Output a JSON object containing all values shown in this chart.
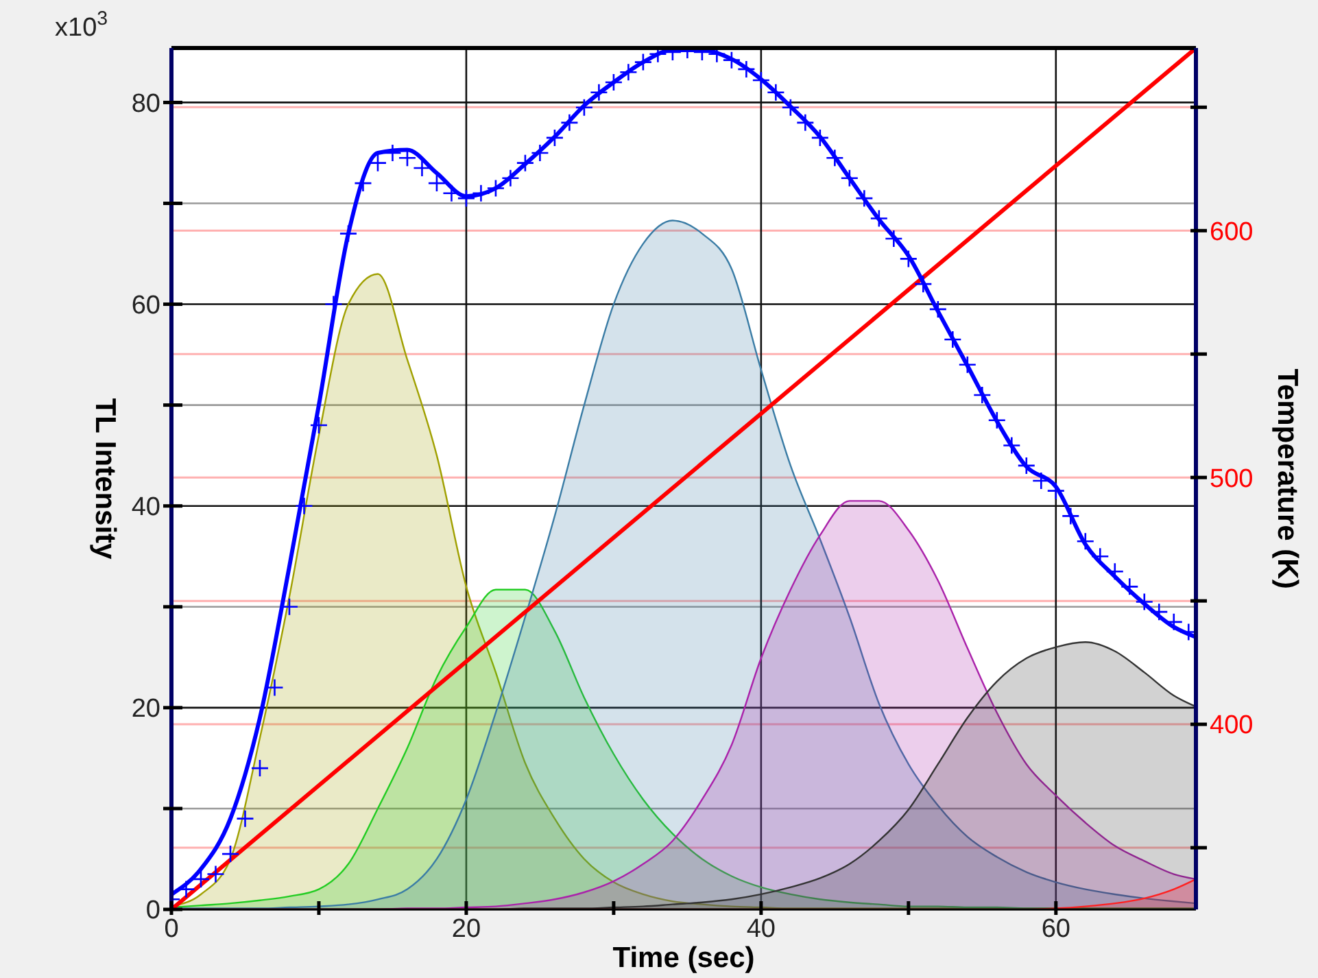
{
  "chart_data": {
    "type": "area",
    "xlabel": "Time (sec)",
    "ylabel": "TL Intensity",
    "y2label": "Temperature (K)",
    "annotations": [
      "x10$^{3}$"
    ],
    "x": [
      0,
      2,
      4,
      6,
      8,
      10,
      12,
      14,
      16,
      18,
      20,
      22,
      24,
      26,
      28,
      30,
      32,
      34,
      36,
      38,
      40,
      42,
      44,
      46,
      48,
      50,
      52,
      54,
      56,
      58,
      60,
      62,
      64,
      66,
      68,
      69.5
    ],
    "xlim": [
      0,
      69.5
    ],
    "xticks": [
      0,
      {
        "value": 10,
        "label": null
      },
      20,
      {
        "value": 30,
        "label": null
      },
      40,
      {
        "value": 50,
        "label": null
      },
      60
    ],
    "ylim": [
      0,
      85.4
    ],
    "yticks": [
      0,
      {
        "value": 10,
        "label": null
      },
      20,
      {
        "value": 30,
        "label": null
      },
      40,
      {
        "value": 50,
        "label": null
      },
      60,
      {
        "value": 70,
        "label": null
      },
      80
    ],
    "y2lim": [
      325,
      674
    ],
    "y2ticks": [
      {
        "value": 350,
        "label": null
      },
      400,
      {
        "value": 450,
        "label": null
      },
      500,
      {
        "value": 550,
        "label": null
      },
      600,
      {
        "value": 650,
        "label": null
      }
    ],
    "grid": true,
    "series": [
      {
        "color": "#a0a000",
        "values": [
          0.3,
          1.5,
          5,
          17,
          31,
          47,
          60,
          63,
          54.5,
          45,
          32,
          23.5,
          14.5,
          9,
          5,
          2.7,
          1.5,
          0.8,
          0.5,
          0.3,
          0.2,
          0.1,
          0.1,
          0.1,
          0.1,
          0.1,
          0.1,
          0.1,
          0.1,
          0.1,
          0.1,
          0.1,
          0.1,
          0.1,
          0.1,
          0.1
        ]
      },
      {
        "color": "#22cc22",
        "values": [
          0.2,
          0.4,
          0.6,
          0.9,
          1.3,
          2,
          4.5,
          10,
          16,
          23,
          28,
          31.7,
          31.7,
          27.6,
          21,
          15.4,
          10.9,
          7.5,
          5,
          3.3,
          2.2,
          1.5,
          1,
          0.7,
          0.5,
          0.3,
          0.3,
          0.2,
          0.2,
          0.1,
          0.1,
          0.1,
          0.1,
          0.1,
          0.1,
          0.1
        ]
      },
      {
        "color": "#3a7ca5",
        "values": [
          0.1,
          0.1,
          0.1,
          0.1,
          0.2,
          0.3,
          0.5,
          1,
          2,
          5,
          10.9,
          19.5,
          29,
          39,
          50,
          60,
          66,
          68.3,
          67,
          63.5,
          53.5,
          44,
          36.7,
          29,
          20.4,
          14.4,
          10.3,
          7.2,
          5.2,
          3.7,
          2.7,
          2,
          1.5,
          1.1,
          0.8,
          0.6
        ]
      },
      {
        "color": "#aa22aa",
        "values": [
          0,
          0,
          0,
          0,
          0,
          0,
          0,
          0,
          0.1,
          0.1,
          0.2,
          0.3,
          0.6,
          1,
          1.7,
          2.8,
          4.5,
          6.8,
          10.9,
          16.3,
          24.9,
          31.7,
          37.1,
          40.5,
          40.5,
          37.6,
          32.6,
          25.9,
          19.5,
          14.4,
          11.3,
          8.6,
          6.3,
          4.8,
          3.5,
          3
        ]
      },
      {
        "color": "#333333",
        "values": [
          0,
          0,
          0,
          0,
          0,
          0,
          0,
          0,
          0,
          0,
          0,
          0,
          0.1,
          0.1,
          0.1,
          0.2,
          0.3,
          0.5,
          0.7,
          1,
          1.5,
          2.2,
          3.1,
          4.5,
          6.8,
          9.9,
          14.4,
          19,
          22.6,
          24.9,
          26,
          26.5,
          25.6,
          23.5,
          21.2,
          20.1
        ]
      },
      {
        "color": "#ff2020",
        "values": [
          0,
          0,
          0,
          0,
          0,
          0,
          0,
          0,
          0,
          0,
          0,
          0,
          0,
          0,
          0,
          0,
          0,
          0,
          0,
          0,
          0,
          0,
          0,
          0,
          0,
          0,
          0,
          0,
          0,
          0,
          0.1,
          0.3,
          0.6,
          1.1,
          2,
          3
        ]
      },
      {
        "type": "line",
        "axis": "y2",
        "color": "#ff0000",
        "x": [
          0,
          69.5
        ],
        "values": [
          325,
          674
        ]
      },
      {
        "type": "scatter",
        "marker": "cross",
        "color": "#0000ff",
        "x": [
          0,
          1,
          2,
          3,
          4,
          5,
          6,
          7,
          8,
          9,
          10,
          11,
          12,
          13,
          14,
          15,
          16,
          17,
          18,
          19,
          20,
          21,
          22,
          23,
          24,
          25,
          26,
          27,
          28,
          29,
          30,
          31,
          32,
          33,
          34,
          35,
          36,
          37,
          38,
          39,
          40,
          41,
          42,
          43,
          44,
          45,
          46,
          47,
          48,
          49,
          50,
          51,
          52,
          53,
          54,
          55,
          56,
          57,
          58,
          59,
          60,
          61,
          62,
          63,
          64,
          65,
          66,
          67,
          68,
          69
        ],
        "values": [
          1,
          2,
          3,
          3.5,
          5.5,
          9,
          14,
          22,
          30,
          40,
          48,
          60,
          67,
          72,
          74,
          75,
          74.5,
          73.5,
          72,
          71,
          70.5,
          71,
          71.5,
          72.5,
          74,
          75,
          76.5,
          78,
          79.5,
          81,
          82,
          83,
          84,
          84.8,
          85,
          85.2,
          85,
          84.8,
          84.2,
          83.3,
          82.2,
          81,
          79.5,
          78,
          76.5,
          74.5,
          72.5,
          70.5,
          68.5,
          66.5,
          64.5,
          62,
          59.5,
          56.5,
          54,
          51,
          48.5,
          46,
          44,
          42.5,
          41.5,
          39,
          36.5,
          35,
          33.5,
          32,
          30.5,
          29.5,
          28.5,
          27.5
        ]
      },
      {
        "type": "line",
        "color": "#0000ff",
        "values": [
          1.5,
          4,
          9,
          19,
          34,
          50,
          67,
          75,
          75.3,
          73,
          70.7,
          71.5,
          73.9,
          76.6,
          79.7,
          82,
          84,
          85.2,
          85.2,
          84.3,
          82.3,
          79.6,
          76.6,
          72.5,
          68.4,
          64.8,
          59.3,
          53.9,
          48.4,
          43.9,
          41.9,
          36.2,
          33,
          30.3,
          28,
          27
        ]
      }
    ]
  }
}
